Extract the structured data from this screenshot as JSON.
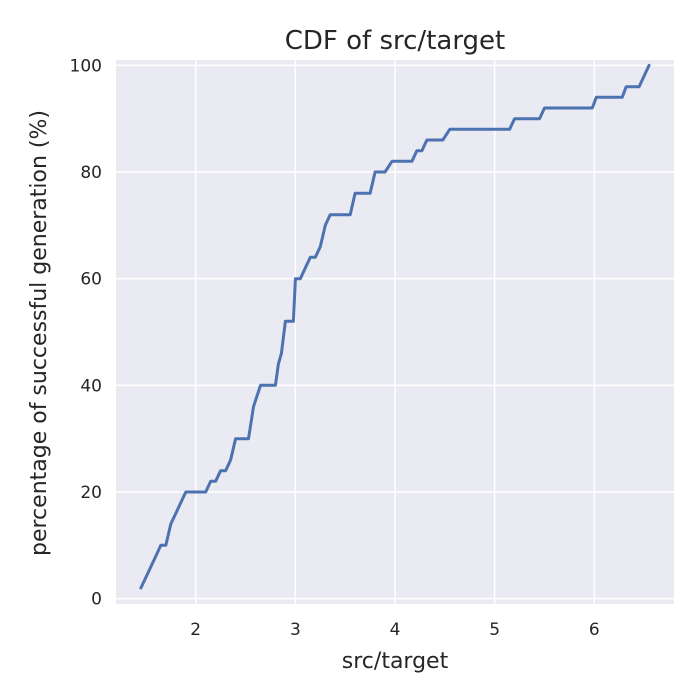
{
  "chart_data": {
    "type": "line",
    "title": "CDF of src/target",
    "xlabel": "src/target",
    "ylabel": "percentage of successful generation (%)",
    "xlim": [
      1.2,
      6.8
    ],
    "ylim": [
      -1,
      101
    ],
    "xticks": [
      2,
      3,
      4,
      5,
      6
    ],
    "yticks": [
      0,
      20,
      40,
      60,
      80,
      100
    ],
    "grid": true,
    "background": "#eaeaf2",
    "grid_color": "#ffffff",
    "series": [
      {
        "color": "#4c72b0",
        "x": [
          1.45,
          1.6,
          1.65,
          1.7,
          1.75,
          1.9,
          2.1,
          2.15,
          2.2,
          2.25,
          2.3,
          2.35,
          2.4,
          2.43,
          2.53,
          2.58,
          2.65,
          2.68,
          2.8,
          2.83,
          2.86,
          2.9,
          2.93,
          2.98,
          3.0,
          3.05,
          3.1,
          3.15,
          3.2,
          3.25,
          3.3,
          3.35,
          3.4,
          3.45,
          3.55,
          3.6,
          3.75,
          3.8,
          3.9,
          3.97,
          4.17,
          4.22,
          4.27,
          4.32,
          4.48,
          4.55,
          5.15,
          5.2,
          5.45,
          5.5,
          5.98,
          6.02,
          6.28,
          6.32,
          6.45,
          6.55
        ],
        "y": [
          2,
          8,
          10,
          10,
          14,
          20,
          20,
          22,
          22,
          24,
          24,
          26,
          30,
          30,
          30,
          36,
          40,
          40,
          40,
          44,
          46,
          52,
          52,
          52,
          60,
          60,
          62,
          64,
          64,
          66,
          70,
          72,
          72,
          72,
          72,
          76,
          76,
          80,
          80,
          82,
          82,
          84,
          84,
          86,
          86,
          88,
          88,
          90,
          90,
          92,
          92,
          94,
          94,
          96,
          96,
          100
        ]
      }
    ]
  }
}
